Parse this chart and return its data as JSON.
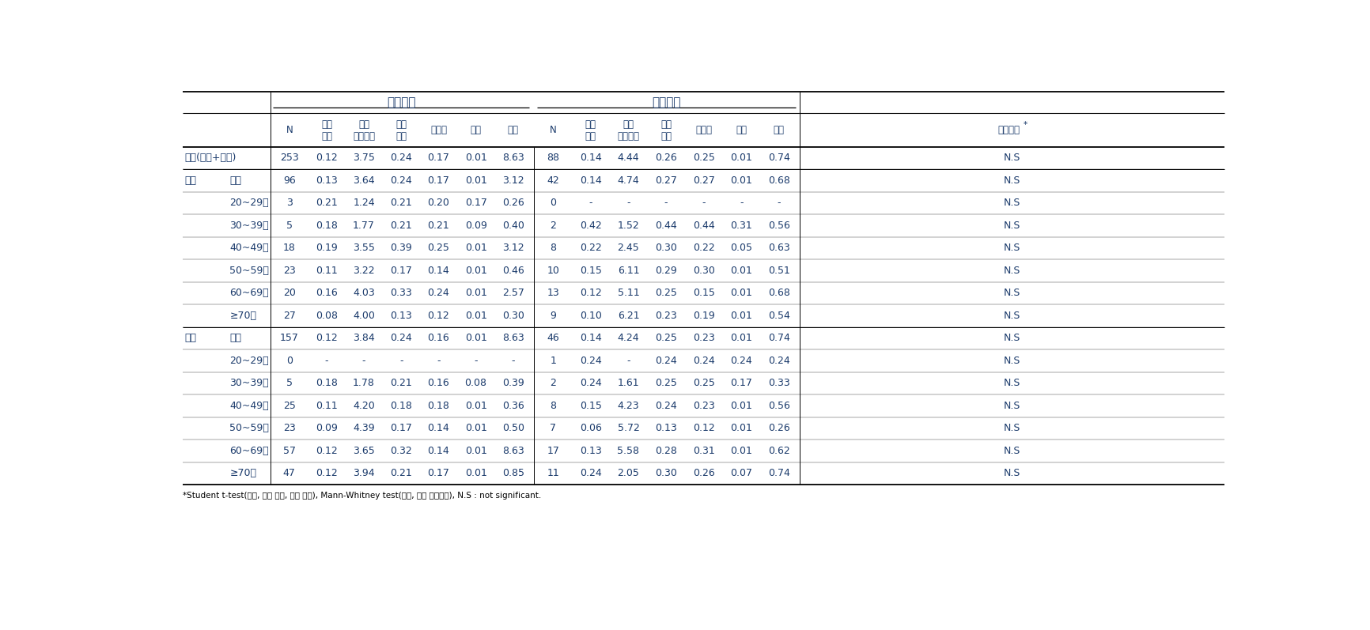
{
  "header_level1": [
    "노출지역",
    "비교지역"
  ],
  "header_level2_exp": [
    "N",
    "기하\n평균",
    "기하\n표준편차",
    "산술\n평균",
    "중위수",
    "최소",
    "최대"
  ],
  "header_level2_comp": [
    "N",
    "기하\n평균",
    "기하\n표준편차",
    "산술\n평균",
    "중위수",
    "최소",
    "최대"
  ],
  "sig_header": "유의수준",
  "rows": [
    {
      "label1": "전체(남성+여성)",
      "label2": "",
      "data": [
        "253",
        "0.12",
        "3.75",
        "0.24",
        "0.17",
        "0.01",
        "8.63",
        "88",
        "0.14",
        "4.44",
        "0.26",
        "0.25",
        "0.01",
        "0.74",
        "N.S"
      ]
    },
    {
      "label1": "남성",
      "label2": "전체",
      "data": [
        "96",
        "0.13",
        "3.64",
        "0.24",
        "0.17",
        "0.01",
        "3.12",
        "42",
        "0.14",
        "4.74",
        "0.27",
        "0.27",
        "0.01",
        "0.68",
        "N.S"
      ]
    },
    {
      "label1": "",
      "label2": "20~29세",
      "data": [
        "3",
        "0.21",
        "1.24",
        "0.21",
        "0.20",
        "0.17",
        "0.26",
        "0",
        "-",
        "-",
        "-",
        "-",
        "-",
        "-",
        "N.S"
      ]
    },
    {
      "label1": "",
      "label2": "30~39세",
      "data": [
        "5",
        "0.18",
        "1.77",
        "0.21",
        "0.21",
        "0.09",
        "0.40",
        "2",
        "0.42",
        "1.52",
        "0.44",
        "0.44",
        "0.31",
        "0.56",
        "N.S"
      ]
    },
    {
      "label1": "",
      "label2": "40~49세",
      "data": [
        "18",
        "0.19",
        "3.55",
        "0.39",
        "0.25",
        "0.01",
        "3.12",
        "8",
        "0.22",
        "2.45",
        "0.30",
        "0.22",
        "0.05",
        "0.63",
        "N.S"
      ]
    },
    {
      "label1": "",
      "label2": "50~59세",
      "data": [
        "23",
        "0.11",
        "3.22",
        "0.17",
        "0.14",
        "0.01",
        "0.46",
        "10",
        "0.15",
        "6.11",
        "0.29",
        "0.30",
        "0.01",
        "0.51",
        "N.S"
      ]
    },
    {
      "label1": "",
      "label2": "60~69세",
      "data": [
        "20",
        "0.16",
        "4.03",
        "0.33",
        "0.24",
        "0.01",
        "2.57",
        "13",
        "0.12",
        "5.11",
        "0.25",
        "0.15",
        "0.01",
        "0.68",
        "N.S"
      ]
    },
    {
      "label1": "",
      "label2": "≥70세",
      "data": [
        "27",
        "0.08",
        "4.00",
        "0.13",
        "0.12",
        "0.01",
        "0.30",
        "9",
        "0.10",
        "6.21",
        "0.23",
        "0.19",
        "0.01",
        "0.54",
        "N.S"
      ]
    },
    {
      "label1": "여성",
      "label2": "전체",
      "data": [
        "157",
        "0.12",
        "3.84",
        "0.24",
        "0.16",
        "0.01",
        "8.63",
        "46",
        "0.14",
        "4.24",
        "0.25",
        "0.23",
        "0.01",
        "0.74",
        "N.S"
      ]
    },
    {
      "label1": "",
      "label2": "20~29세",
      "data": [
        "0",
        "-",
        "-",
        "-",
        "-",
        "-",
        "-",
        "1",
        "0.24",
        "-",
        "0.24",
        "0.24",
        "0.24",
        "0.24",
        "N.S"
      ]
    },
    {
      "label1": "",
      "label2": "30~39세",
      "data": [
        "5",
        "0.18",
        "1.78",
        "0.21",
        "0.16",
        "0.08",
        "0.39",
        "2",
        "0.24",
        "1.61",
        "0.25",
        "0.25",
        "0.17",
        "0.33",
        "N.S"
      ]
    },
    {
      "label1": "",
      "label2": "40~49세",
      "data": [
        "25",
        "0.11",
        "4.20",
        "0.18",
        "0.18",
        "0.01",
        "0.36",
        "8",
        "0.15",
        "4.23",
        "0.24",
        "0.23",
        "0.01",
        "0.56",
        "N.S"
      ]
    },
    {
      "label1": "",
      "label2": "50~59세",
      "data": [
        "23",
        "0.09",
        "4.39",
        "0.17",
        "0.14",
        "0.01",
        "0.50",
        "7",
        "0.06",
        "5.72",
        "0.13",
        "0.12",
        "0.01",
        "0.26",
        "N.S"
      ]
    },
    {
      "label1": "",
      "label2": "60~69세",
      "data": [
        "57",
        "0.12",
        "3.65",
        "0.32",
        "0.14",
        "0.01",
        "8.63",
        "17",
        "0.13",
        "5.58",
        "0.28",
        "0.31",
        "0.01",
        "0.62",
        "N.S"
      ]
    },
    {
      "label1": "",
      "label2": "≥70세",
      "data": [
        "47",
        "0.12",
        "3.94",
        "0.21",
        "0.17",
        "0.01",
        "0.85",
        "11",
        "0.24",
        "2.05",
        "0.30",
        "0.26",
        "0.07",
        "0.74",
        "N.S"
      ]
    }
  ],
  "footnote": "*Student t-test(전체, 남성 전체, 여성 전체), Mann-Whitney test(남성, 여성 연령군별), N.S : not significant.",
  "text_color": "#1a3a6b",
  "line_color": "#000000",
  "fig_width": 17.33,
  "fig_height": 7.97,
  "dpi": 100
}
